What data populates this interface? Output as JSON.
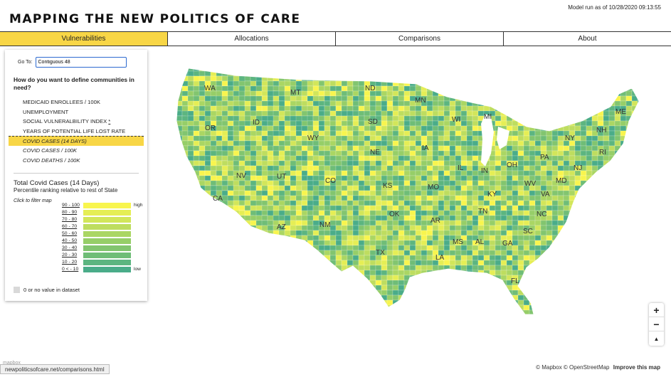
{
  "header": {
    "title": "MAPPING THE NEW POLITICS OF CARE",
    "model_run": "Model run as of 10/28/2020 09:13:55"
  },
  "tabs": [
    {
      "label": "Vulnerabilities",
      "active": true
    },
    {
      "label": "Allocations",
      "active": false
    },
    {
      "label": "Comparisons",
      "active": false
    },
    {
      "label": "About",
      "active": false
    }
  ],
  "panel": {
    "goto_label": "Go To:",
    "goto_value": "Contiguous 48",
    "question": "How do you want to define communities in need?",
    "options": [
      {
        "label": "MEDICAID ENROLLEES / 100K",
        "selected": false,
        "italic": false
      },
      {
        "label": "UNEMPLOYMENT",
        "selected": false,
        "italic": false
      },
      {
        "label": "SOCIAL VULNERALBILITY INDEX",
        "selected": false,
        "italic": false,
        "asterisk": "*"
      },
      {
        "label": "YEARS OF POTENTIAL LIFE LOST RATE",
        "selected": false,
        "italic": false
      },
      {
        "label": "COVID CASES (14 DAYS)",
        "selected": true,
        "italic": true
      },
      {
        "label": "COVID CASES / 100K",
        "selected": false,
        "italic": true
      },
      {
        "label": "COVID DEATHS / 100K",
        "selected": false,
        "italic": true
      }
    ]
  },
  "legend": {
    "title": "Total Covid Cases (14 Days)",
    "subtitle": "Percentile ranking relative to rest of State",
    "hint": "Click to filter map",
    "high_label": "high",
    "low_label": "low",
    "bins": [
      {
        "label": "90 - 100",
        "color": "#f8f54e"
      },
      {
        "label": "80 - 90",
        "color": "#e5ee55"
      },
      {
        "label": "70 - 80",
        "color": "#d2e65a"
      },
      {
        "label": "60 - 70",
        "color": "#bedd5f"
      },
      {
        "label": "50 - 60",
        "color": "#aad663"
      },
      {
        "label": "40 - 50",
        "color": "#96ce68"
      },
      {
        "label": "30 - 40",
        "color": "#82c56f"
      },
      {
        "label": "20 - 30",
        "color": "#6fbd77"
      },
      {
        "label": "10 - 20",
        "color": "#5cb580"
      },
      {
        "label": "0 < - 10",
        "color": "#4aac89"
      }
    ],
    "nodata_label": "0 or no value in dataset",
    "nodata_color": "#d9d9d9"
  },
  "map": {
    "state_labels": [
      "WA",
      "MT",
      "ND",
      "MN",
      "OR",
      "ID",
      "SD",
      "WI",
      "MI",
      "WY",
      "NE",
      "IA",
      "NV",
      "UT",
      "CO",
      "KS",
      "MO",
      "IL",
      "IN",
      "OH",
      "PA",
      "NY",
      "CA",
      "OK",
      "KY",
      "WV",
      "VA",
      "AZ",
      "NM",
      "TN",
      "AR",
      "NC",
      "SC",
      "TX",
      "MS",
      "AL",
      "GA",
      "LA",
      "FL",
      "ME",
      "NH",
      "RI",
      "NJ",
      "MD"
    ]
  },
  "controls": {
    "zoom_in": "+",
    "zoom_out": "−",
    "reset_north": "▲"
  },
  "attribution": {
    "text": "© Mapbox © OpenStreetMap",
    "improve": "Improve this map"
  },
  "status_bar": {
    "url": "newpoliticsofcare.net/comparisons.html"
  }
}
